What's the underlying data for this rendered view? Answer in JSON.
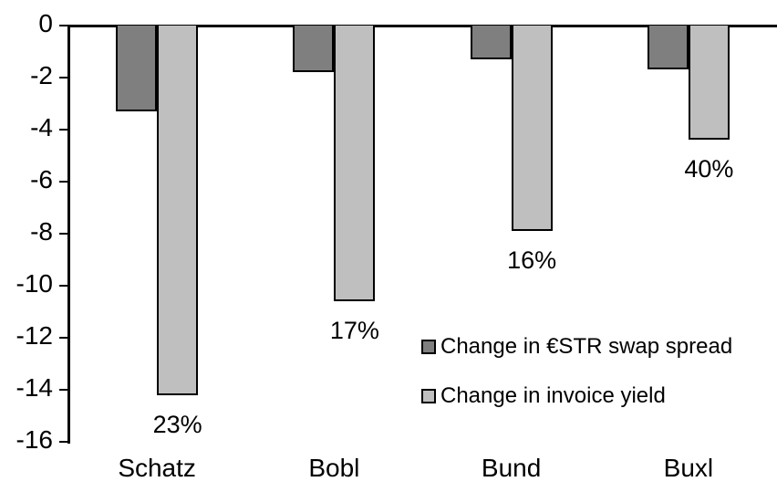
{
  "chart_data": {
    "type": "bar",
    "categories": [
      "Schatz",
      "Bobl",
      "Bund",
      "Buxl"
    ],
    "series": [
      {
        "name": "Change in €STR swap spread",
        "color": "#7f7f7f",
        "values": [
          -3.3,
          -1.8,
          -1.3,
          -1.7
        ]
      },
      {
        "name": "Change in invoice yield",
        "color": "#bfbfbf",
        "values": [
          -14.2,
          -10.6,
          -7.9,
          -4.4
        ]
      }
    ],
    "bar_labels": {
      "series": "Change in invoice yield",
      "values": [
        "23%",
        "17%",
        "16%",
        "40%"
      ]
    },
    "title": "",
    "xlabel": "",
    "ylabel": "",
    "ylim": [
      -16,
      0
    ],
    "yticks": [
      0,
      -2,
      -4,
      -6,
      -8,
      -10,
      -12,
      -14,
      -16
    ],
    "grid": false,
    "legend_position": "inside-right",
    "axis_color": "#000000",
    "text_color": "#000000",
    "background_color": "#ffffff"
  }
}
